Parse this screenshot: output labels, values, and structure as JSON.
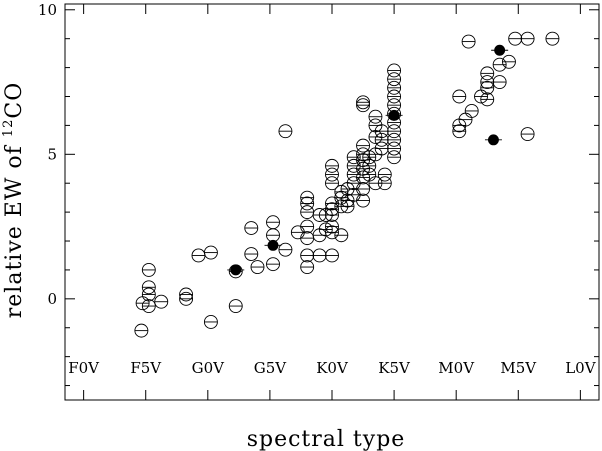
{
  "chart_data": {
    "type": "scatter",
    "xlabel": "spectral type",
    "ylabel_main": "relative EW of",
    "ylabel_iso": "12",
    "ylabel_species": "CO",
    "x_categories": [
      "F0V",
      "F5V",
      "G0V",
      "G5V",
      "K0V",
      "K5V",
      "M0V",
      "M5V",
      "L0V"
    ],
    "xlim": [
      -0.3,
      8.3
    ],
    "ylim": [
      -3.5,
      10.2
    ],
    "yticks": [
      0,
      5,
      10
    ],
    "grid": false,
    "marker_styles": {
      "open": "open circle with horizontal bar",
      "filled": "filled circle"
    },
    "series": [
      {
        "marker": "open",
        "points": [
          [
            0.93,
            -1.1
          ],
          [
            0.95,
            -0.15
          ],
          [
            1.05,
            1.0
          ],
          [
            1.05,
            0.4
          ],
          [
            1.05,
            0.15
          ],
          [
            1.05,
            -0.25
          ],
          [
            1.25,
            -0.1
          ],
          [
            1.65,
            0.15
          ],
          [
            1.65,
            0.0
          ],
          [
            1.85,
            1.5
          ],
          [
            2.05,
            1.6
          ],
          [
            2.05,
            -0.8
          ],
          [
            2.45,
            -0.25
          ],
          [
            2.45,
            0.95
          ],
          [
            2.7,
            2.45
          ],
          [
            2.7,
            1.55
          ],
          [
            2.8,
            1.1
          ],
          [
            3.05,
            2.65
          ],
          [
            3.05,
            2.2
          ],
          [
            3.05,
            1.2
          ],
          [
            3.25,
            5.8
          ],
          [
            3.25,
            1.7
          ],
          [
            3.45,
            2.3
          ],
          [
            3.6,
            1.1
          ],
          [
            3.6,
            1.5
          ],
          [
            3.6,
            2.1
          ],
          [
            3.6,
            2.5
          ],
          [
            3.6,
            3.0
          ],
          [
            3.6,
            3.3
          ],
          [
            3.6,
            3.5
          ],
          [
            3.8,
            1.5
          ],
          [
            3.8,
            2.2
          ],
          [
            3.8,
            2.9
          ],
          [
            3.9,
            2.4
          ],
          [
            3.9,
            2.9
          ],
          [
            4.0,
            1.5
          ],
          [
            4.0,
            2.3
          ],
          [
            4.0,
            2.5
          ],
          [
            4.0,
            2.9
          ],
          [
            4.0,
            3.1
          ],
          [
            4.0,
            3.3
          ],
          [
            4.0,
            4.0
          ],
          [
            4.0,
            4.3
          ],
          [
            4.0,
            4.6
          ],
          [
            4.15,
            2.2
          ],
          [
            4.15,
            3.2
          ],
          [
            4.15,
            3.5
          ],
          [
            4.15,
            3.7
          ],
          [
            4.25,
            3.2
          ],
          [
            4.25,
            3.4
          ],
          [
            4.25,
            3.8
          ],
          [
            4.35,
            3.6
          ],
          [
            4.35,
            4.0
          ],
          [
            4.35,
            4.3
          ],
          [
            4.35,
            4.6
          ],
          [
            4.35,
            4.9
          ],
          [
            4.5,
            3.8
          ],
          [
            4.5,
            4.2
          ],
          [
            4.5,
            4.5
          ],
          [
            4.5,
            4.8
          ],
          [
            4.5,
            5.0
          ],
          [
            4.5,
            5.3
          ],
          [
            4.5,
            3.4
          ],
          [
            4.6,
            4.3
          ],
          [
            4.6,
            4.6
          ],
          [
            4.6,
            4.9
          ],
          [
            4.7,
            4.0
          ],
          [
            4.7,
            5.0
          ],
          [
            4.7,
            5.6
          ],
          [
            4.7,
            6.0
          ],
          [
            4.7,
            6.3
          ],
          [
            4.8,
            5.2
          ],
          [
            4.8,
            5.5
          ],
          [
            4.8,
            5.8
          ],
          [
            4.85,
            4.0
          ],
          [
            4.85,
            4.3
          ],
          [
            5.0,
            4.9
          ],
          [
            5.0,
            5.2
          ],
          [
            5.0,
            5.5
          ],
          [
            5.0,
            5.8
          ],
          [
            5.0,
            6.1
          ],
          [
            5.0,
            6.4
          ],
          [
            5.0,
            6.7
          ],
          [
            5.0,
            7.0
          ],
          [
            5.0,
            7.3
          ],
          [
            5.0,
            7.6
          ],
          [
            5.0,
            7.9
          ],
          [
            4.5,
            6.8
          ],
          [
            4.5,
            6.7
          ],
          [
            6.05,
            7.0
          ],
          [
            6.05,
            6.0
          ],
          [
            6.05,
            5.8
          ],
          [
            6.15,
            6.2
          ],
          [
            6.2,
            8.9
          ],
          [
            6.25,
            6.5
          ],
          [
            6.4,
            7.0
          ],
          [
            6.5,
            7.3
          ],
          [
            6.5,
            6.9
          ],
          [
            6.5,
            7.5
          ],
          [
            6.5,
            7.8
          ],
          [
            6.7,
            7.5
          ],
          [
            6.7,
            8.1
          ],
          [
            6.85,
            8.2
          ],
          [
            6.95,
            9.0
          ],
          [
            7.15,
            9.0
          ],
          [
            7.15,
            5.7
          ],
          [
            7.55,
            9.0
          ]
        ]
      },
      {
        "marker": "filled",
        "points": [
          [
            2.45,
            1.0
          ],
          [
            3.05,
            1.85
          ],
          [
            5.0,
            6.35
          ],
          [
            6.6,
            5.5
          ],
          [
            6.7,
            8.6
          ]
        ]
      }
    ]
  }
}
